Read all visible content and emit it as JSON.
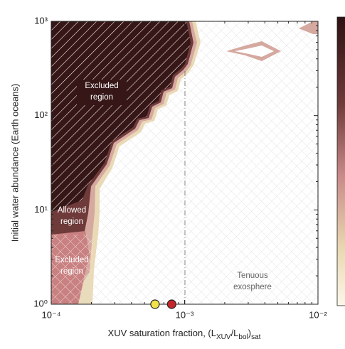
{
  "chart_data": {
    "type": "contour",
    "xlabel_parts": [
      "XUV saturation fraction, (L",
      "XUV",
      "/L",
      "bol",
      ")",
      "sat"
    ],
    "ylabel": "Initial water abundance (Earth oceans)",
    "xscale": "log",
    "yscale": "log",
    "xlim": [
      0.0001,
      0.01
    ],
    "ylim": [
      1,
      1000
    ],
    "xticks": [
      {
        "value": 0.0001,
        "label": "10⁻⁴"
      },
      {
        "value": 0.001,
        "label": "10⁻³"
      },
      {
        "value": 0.01,
        "label": "10⁻²"
      }
    ],
    "yticks": [
      {
        "value": 1,
        "label": "10⁰"
      },
      {
        "value": 10,
        "label": "10¹"
      },
      {
        "value": 100,
        "label": "10²"
      },
      {
        "value": 1000,
        "label": "10³"
      }
    ],
    "annotations": [
      {
        "lines": [
          "Excluded",
          "region"
        ]
      },
      {
        "lines": [
          "Allowed",
          "region"
        ]
      },
      {
        "lines": [
          "Excluded",
          "region"
        ]
      },
      {
        "lines": [
          "Tenuous",
          "exosphere"
        ]
      }
    ],
    "series": [
      {
        "x": [
          0.0006
        ],
        "y": [
          1
        ],
        "color": "#f2e24a"
      },
      {
        "x": [
          0.0008
        ],
        "y": [
          1
        ],
        "color": "#c4262b"
      }
    ]
  }
}
